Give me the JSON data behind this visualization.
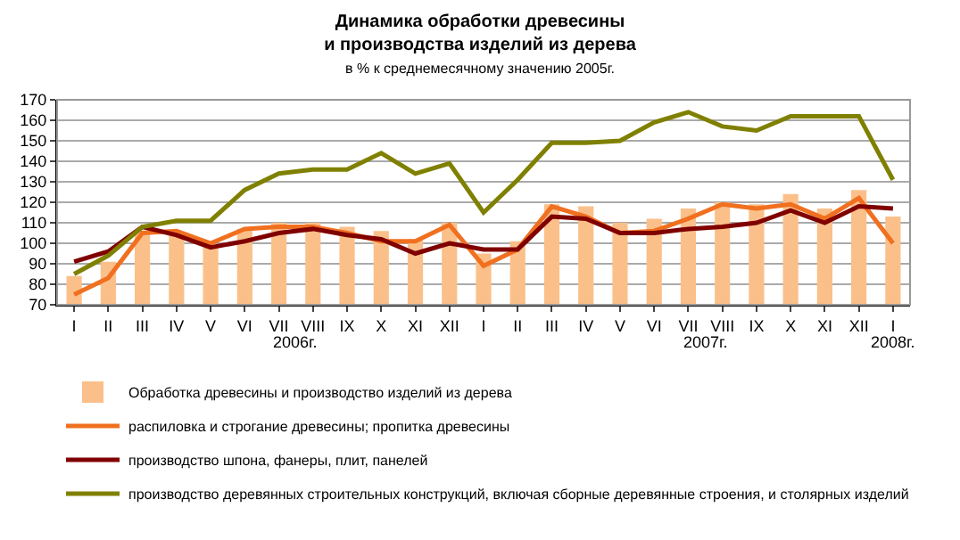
{
  "chart_data": {
    "type": "bar",
    "title": "Динамика обработки древесины\nи производства изделий из дерева",
    "subtitle": "в % к среднемесячному значению 2005г.",
    "categories": [
      "I",
      "II",
      "III",
      "IV",
      "V",
      "VI",
      "VII",
      "VIII",
      "IX",
      "X",
      "XI",
      "XII",
      "I",
      "II",
      "III",
      "IV",
      "V",
      "VI",
      "VII",
      "VIII",
      "IX",
      "X",
      "XI",
      "XII",
      "I"
    ],
    "series": [
      {
        "name": "Обработка древесины и производство изделий из дерева",
        "color": "#fbc08a",
        "values": [
          84,
          91,
          106,
          105,
          98,
          107,
          110,
          110,
          108,
          106,
          102,
          110,
          95,
          101,
          119,
          118,
          110,
          112,
          117,
          120,
          119,
          124,
          117,
          126,
          113
        ]
      },
      {
        "name": "распиловка и строгание древесины; пропитка древесины",
        "type": "line",
        "color": "#f07020",
        "values": [
          75,
          83,
          105,
          106,
          100,
          107,
          108,
          108,
          105,
          101,
          101,
          109,
          89,
          97,
          118,
          113,
          105,
          106,
          112,
          119,
          117,
          119,
          112,
          122,
          100
        ]
      },
      {
        "name": "производство шпона, фанеры, плит, панелей",
        "type": "line",
        "color": "#800000",
        "values": [
          91,
          96,
          108,
          104,
          98,
          101,
          105,
          107,
          104,
          102,
          95,
          100,
          97,
          97,
          113,
          112,
          105,
          105,
          107,
          108,
          110,
          116,
          110,
          118,
          117
        ]
      },
      {
        "name": "производство деревянных строительных конструкций, включая сборные деревянные строения, и столярных изделий",
        "type": "line",
        "color": "#808000",
        "values": [
          85,
          94,
          108,
          111,
          111,
          126,
          134,
          136,
          136,
          144,
          134,
          139,
          115,
          131,
          149,
          149,
          150,
          159,
          164,
          157,
          155,
          162,
          162,
          162,
          131
        ]
      }
    ],
    "annotations": [
      "2006г.",
      "2007г.",
      "2008г."
    ],
    "ylim": [
      70,
      170
    ],
    "yticks": [
      70,
      80,
      90,
      100,
      110,
      120,
      130,
      140,
      150,
      160,
      170
    ],
    "grid": "y",
    "legend": "bottom",
    "marker": "none",
    "line_style": "solid"
  }
}
